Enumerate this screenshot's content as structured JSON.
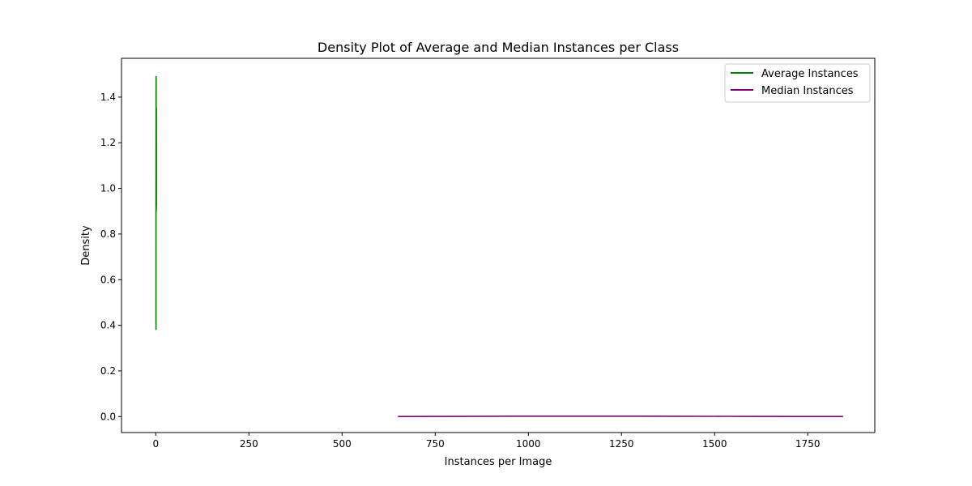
{
  "chart_data": {
    "type": "line",
    "title": "Density Plot of Average and Median Instances per Class",
    "xlabel": "Instances per Image",
    "ylabel": "Density",
    "xlim": [
      -92,
      1930
    ],
    "ylim": [
      -0.07,
      1.57
    ],
    "xticks": [
      0,
      250,
      500,
      750,
      1000,
      1250,
      1500,
      1750
    ],
    "yticks": [
      0.0,
      0.2,
      0.4,
      0.6,
      0.8,
      1.0,
      1.2,
      1.4
    ],
    "ytick_labels": [
      "0.0",
      "0.2",
      "0.4",
      "0.6",
      "0.8",
      "1.0",
      "1.2",
      "1.4"
    ],
    "grid": false,
    "legend_position": "top-right",
    "series": [
      {
        "name": "Average Instances",
        "color": "#008000",
        "x": [
          0.55,
          0.6,
          0.65,
          0.7,
          0.75,
          0.8,
          0.85,
          0.9,
          0.95,
          1.0,
          1.05,
          1.1,
          1.15,
          1.2,
          1.25,
          1.3,
          1.35,
          1.4,
          1.45,
          1.5,
          1.55,
          1.6,
          1.65,
          1.7,
          1.75
        ],
        "values": [
          0.38,
          0.66,
          0.95,
          1.19,
          1.36,
          1.45,
          1.49,
          1.47,
          1.41,
          1.32,
          1.22,
          1.13,
          1.05,
          0.98,
          0.93,
          0.9,
          0.92,
          0.98,
          1.08,
          1.2,
          1.3,
          1.35,
          1.3,
          1.15,
          0.92
        ]
      },
      {
        "name": "Median Instances",
        "color": "#800080",
        "x": [
          650,
          700,
          800,
          900,
          1000,
          1100,
          1200,
          1300,
          1400,
          1500,
          1600,
          1700,
          1800,
          1845
        ],
        "values": [
          0.0003,
          0.0005,
          0.0009,
          0.0013,
          0.0016,
          0.0018,
          0.0018,
          0.0016,
          0.0013,
          0.001,
          0.0007,
          0.0005,
          0.0004,
          0.0003
        ]
      }
    ]
  }
}
